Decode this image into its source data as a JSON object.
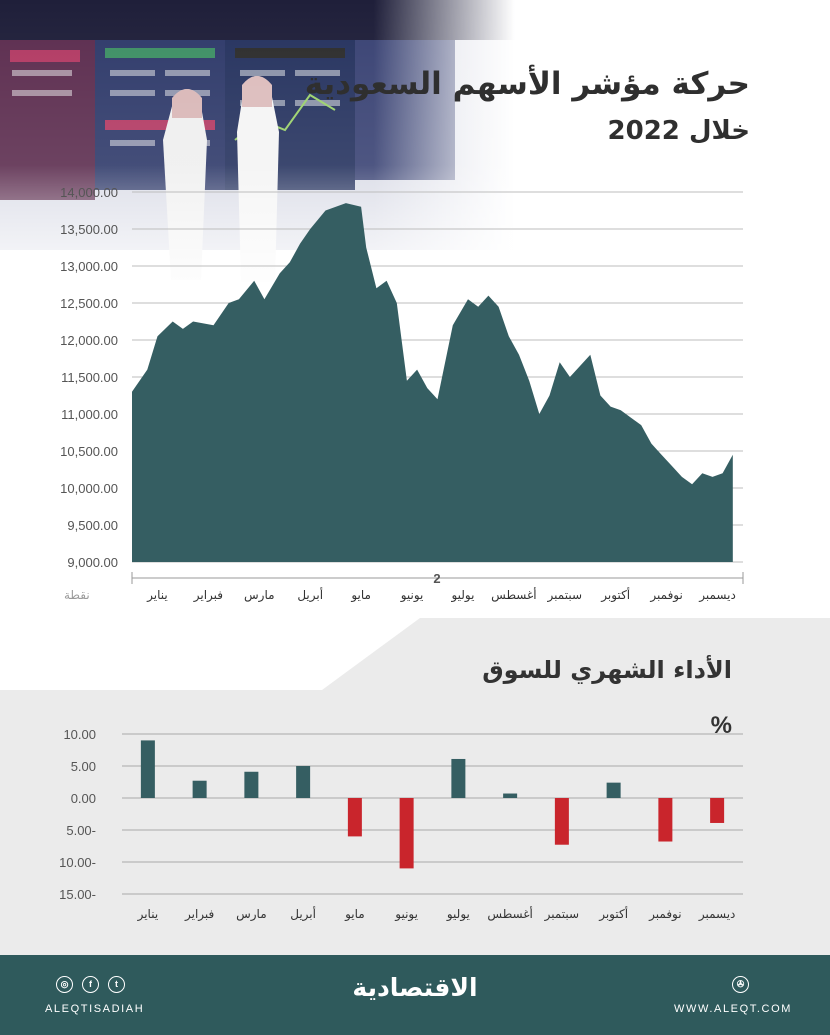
{
  "header": {
    "title": "حركة مؤشر الأسهم السعودية",
    "subtitle": "خلال 2022"
  },
  "colors": {
    "area_fill": "#355e62",
    "positive": "#355e62",
    "negative": "#c9252c",
    "footer": "#2f5a5c"
  },
  "chart_data": [
    {
      "type": "area",
      "title": "حركة مؤشر الأسهم السعودية",
      "subtitle": "خلال 2022",
      "ylabel": "نقطة",
      "ylim": [
        9000,
        14000
      ],
      "yticks": [
        "14,000.00",
        "13,500.00",
        "13,000.00",
        "12,500.00",
        "12,000.00",
        "11,500.00",
        "11,000.00",
        "10,500.00",
        "10,000.00",
        "9,500.00",
        "9,000.00"
      ],
      "grid": true,
      "x_note": "2",
      "categories": [
        "يناير",
        "فبراير",
        "مارس",
        "أبريل",
        "مايو",
        "يونيو",
        "يوليو",
        "أغسطس",
        "سبتمبر",
        "أكتوبر",
        "نوفمبر",
        "ديسمبر"
      ],
      "x": [
        0,
        0.3,
        0.5,
        0.8,
        1.0,
        1.2,
        1.6,
        1.9,
        2.1,
        2.4,
        2.6,
        2.9,
        3.1,
        3.3,
        3.5,
        3.8,
        4.2,
        4.5,
        4.6,
        4.8,
        5.0,
        5.2,
        5.4,
        5.6,
        5.8,
        6.0,
        6.3,
        6.6,
        6.8,
        7.0,
        7.2,
        7.4,
        7.6,
        7.8,
        8.0,
        8.2,
        8.4,
        8.6,
        8.8,
        9.0,
        9.2,
        9.4,
        9.6,
        9.8,
        10.0,
        10.2,
        10.4,
        10.6,
        10.8,
        11.0,
        11.2,
        11.4,
        11.6,
        11.8
      ],
      "values": [
        11300,
        11600,
        12050,
        12250,
        12150,
        12250,
        12200,
        12500,
        12550,
        12800,
        12550,
        12900,
        13050,
        13300,
        13500,
        13750,
        13850,
        13800,
        13250,
        12700,
        12800,
        12500,
        11450,
        11600,
        11350,
        11200,
        12200,
        12550,
        12450,
        12600,
        12450,
        12050,
        11800,
        11450,
        11000,
        11250,
        11700,
        11500,
        11650,
        11800,
        11250,
        11100,
        11050,
        10950,
        10850,
        10600,
        10450,
        10300,
        10150,
        10050,
        10200,
        10150,
        10200,
        10450
      ]
    },
    {
      "type": "bar",
      "title": "الأداء الشهري للسوق",
      "unit": "%",
      "ylim": [
        -15,
        10
      ],
      "yticks": [
        "10.00",
        "5.00",
        "0.00",
        "5.00-",
        "10.00-",
        "15.00-"
      ],
      "categories": [
        "يناير",
        "فبراير",
        "مارس",
        "أبريل",
        "مايو",
        "يونيو",
        "يوليو",
        "أغسطس",
        "سبتمبر",
        "أكتوبر",
        "نوفمبر",
        "ديسمبر"
      ],
      "values": [
        9.0,
        2.7,
        4.1,
        5.0,
        -6.0,
        -11.0,
        6.1,
        0.7,
        -7.3,
        2.4,
        -6.8,
        -3.9
      ]
    }
  ],
  "footer": {
    "handle": "ALEQTISADIAH",
    "brand": "الاقتصادية",
    "url": "WWW.ALEQT.COM",
    "social_icons": [
      "instagram-icon",
      "facebook-icon",
      "twitter-icon"
    ],
    "site_icon": "globe-icon"
  }
}
